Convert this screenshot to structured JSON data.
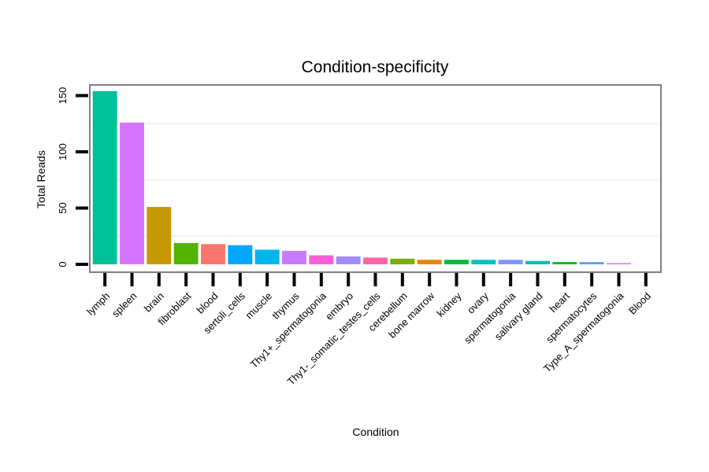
{
  "chart_data": {
    "type": "bar",
    "title": "Condition-specificity",
    "xlabel": "Condition",
    "ylabel": "Total Reads",
    "ylim": [
      0,
      162
    ],
    "yticks": [
      0,
      50,
      100,
      150
    ],
    "grid": "horizontal-minor",
    "categories": [
      "lymph",
      "spleen",
      "brain",
      "fibroblast",
      "blood",
      "sertoli_cells",
      "muscle",
      "thymus",
      "Thy1+_spermatogonia",
      "embryo",
      "Thy1-_somatic_testes_cells",
      "cerebellum",
      "bone marrow",
      "kidney",
      "ovary",
      "spermatogonia",
      "salivary gland",
      "heart",
      "spermatocytes",
      "Type_A_spermatogonia",
      "Blood"
    ],
    "values": [
      154,
      126,
      51,
      19,
      18,
      17,
      13,
      12,
      8,
      7,
      6,
      5,
      4,
      4,
      4,
      4,
      3,
      2,
      2,
      1,
      0
    ],
    "colors": [
      "#00C19A",
      "#D575FE",
      "#C49A00",
      "#53B400",
      "#F8766D",
      "#00A9FF",
      "#00B6EB",
      "#C77CFF",
      "#FB61D7",
      "#A58AFF",
      "#FF66A8",
      "#7CAE00",
      "#E58700",
      "#00BA38",
      "#00BFC4",
      "#8494FF",
      "#00C0AF",
      "#0CB702",
      "#619CFF",
      "#E76BF3",
      "#FF67A4"
    ]
  }
}
